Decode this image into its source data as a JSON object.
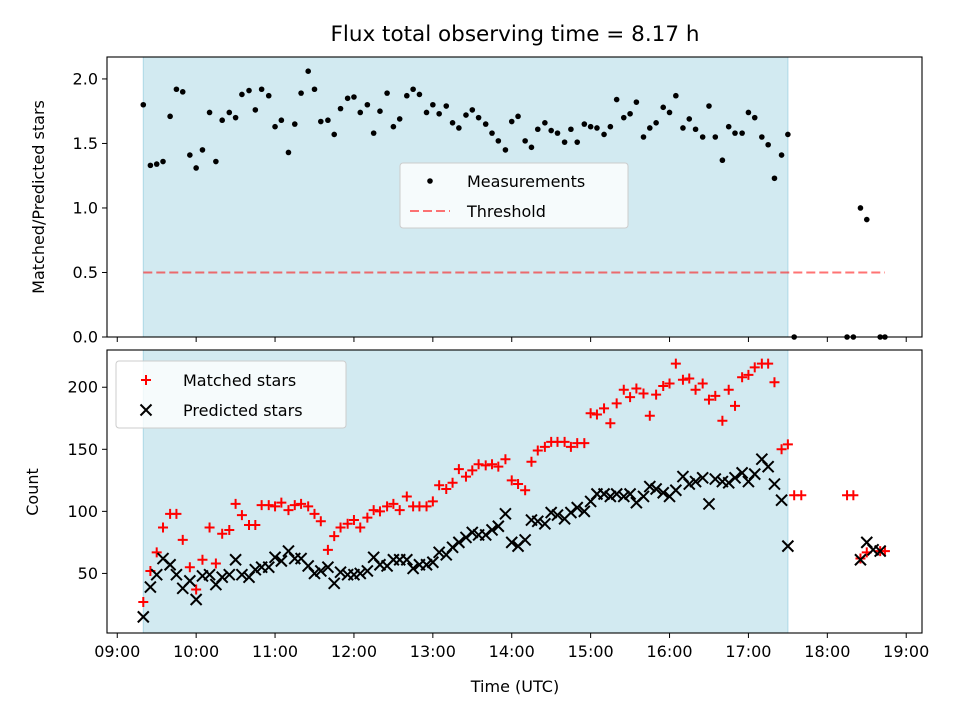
{
  "chart_data": {
    "title": "Flux total observing time = 8.17 h",
    "xlabel": "Time (UTC)",
    "x_ticks": [
      "09:00",
      "10:00",
      "11:00",
      "12:00",
      "13:00",
      "14:00",
      "15:00",
      "16:00",
      "17:00",
      "18:00",
      "19:00"
    ],
    "x_tick_hours": [
      9,
      10,
      11,
      12,
      13,
      14,
      15,
      16,
      17,
      18,
      19
    ],
    "xlim": [
      8.87,
      19.2
    ],
    "observing_window_hours": [
      9.33,
      17.5
    ],
    "colors": {
      "span": "#add8e6",
      "measure": "#000000",
      "threshold": "#ff0000",
      "matched": "#ff0000",
      "predicted": "#000000"
    },
    "top": {
      "type": "scatter",
      "ylabel": "Matched/Predicted stars",
      "ylim": [
        0,
        2.17
      ],
      "y_ticks": [
        "0.0",
        "0.5",
        "1.0",
        "1.5",
        "2.0"
      ],
      "y_tick_values": [
        0,
        0.5,
        1.0,
        1.5,
        2.0
      ],
      "threshold": {
        "value": 0.5,
        "x_range": [
          9.33,
          18.73
        ]
      },
      "legend": {
        "position": "center",
        "entries": [
          "Measurements",
          "Threshold"
        ]
      },
      "measurements": [
        [
          9.33,
          1.8
        ],
        [
          9.42,
          1.33
        ],
        [
          9.5,
          1.34
        ],
        [
          9.58,
          1.36
        ],
        [
          9.67,
          1.71
        ],
        [
          9.75,
          1.92
        ],
        [
          9.83,
          1.9
        ],
        [
          9.92,
          1.41
        ],
        [
          10.0,
          1.31
        ],
        [
          10.08,
          1.45
        ],
        [
          10.17,
          1.74
        ],
        [
          10.25,
          1.36
        ],
        [
          10.33,
          1.68
        ],
        [
          10.42,
          1.74
        ],
        [
          10.5,
          1.7
        ],
        [
          10.58,
          1.88
        ],
        [
          10.67,
          1.91
        ],
        [
          10.75,
          1.76
        ],
        [
          10.83,
          1.92
        ],
        [
          10.92,
          1.87
        ],
        [
          11.0,
          1.63
        ],
        [
          11.08,
          1.68
        ],
        [
          11.17,
          1.43
        ],
        [
          11.25,
          1.65
        ],
        [
          11.33,
          1.89
        ],
        [
          11.42,
          2.06
        ],
        [
          11.5,
          1.92
        ],
        [
          11.58,
          1.67
        ],
        [
          11.67,
          1.68
        ],
        [
          11.75,
          1.57
        ],
        [
          11.83,
          1.77
        ],
        [
          11.92,
          1.85
        ],
        [
          12.0,
          1.86
        ],
        [
          12.08,
          1.74
        ],
        [
          12.17,
          1.8
        ],
        [
          12.25,
          1.58
        ],
        [
          12.33,
          1.75
        ],
        [
          12.42,
          1.89
        ],
        [
          12.5,
          1.63
        ],
        [
          12.58,
          1.69
        ],
        [
          12.67,
          1.87
        ],
        [
          12.75,
          1.92
        ],
        [
          12.83,
          1.88
        ],
        [
          12.92,
          1.74
        ],
        [
          13.0,
          1.8
        ],
        [
          13.08,
          1.73
        ],
        [
          13.17,
          1.79
        ],
        [
          13.25,
          1.66
        ],
        [
          13.33,
          1.62
        ],
        [
          13.42,
          1.72
        ],
        [
          13.5,
          1.76
        ],
        [
          13.58,
          1.7
        ],
        [
          13.67,
          1.65
        ],
        [
          13.75,
          1.58
        ],
        [
          13.83,
          1.52
        ],
        [
          13.92,
          1.45
        ],
        [
          14.0,
          1.67
        ],
        [
          14.08,
          1.71
        ],
        [
          14.17,
          1.52
        ],
        [
          14.25,
          1.47
        ],
        [
          14.33,
          1.61
        ],
        [
          14.42,
          1.66
        ],
        [
          14.5,
          1.6
        ],
        [
          14.58,
          1.58
        ],
        [
          14.67,
          1.51
        ],
        [
          14.75,
          1.61
        ],
        [
          14.83,
          1.51
        ],
        [
          14.92,
          1.65
        ],
        [
          15.0,
          1.63
        ],
        [
          15.08,
          1.62
        ],
        [
          15.17,
          1.57
        ],
        [
          15.25,
          1.63
        ],
        [
          15.33,
          1.84
        ],
        [
          15.42,
          1.7
        ],
        [
          15.5,
          1.73
        ],
        [
          15.58,
          1.82
        ],
        [
          15.67,
          1.55
        ],
        [
          15.75,
          1.62
        ],
        [
          15.83,
          1.66
        ],
        [
          15.92,
          1.78
        ],
        [
          16.0,
          1.74
        ],
        [
          16.08,
          1.87
        ],
        [
          16.17,
          1.62
        ],
        [
          16.25,
          1.69
        ],
        [
          16.33,
          1.61
        ],
        [
          16.42,
          1.55
        ],
        [
          16.5,
          1.79
        ],
        [
          16.58,
          1.55
        ],
        [
          16.67,
          1.37
        ],
        [
          16.75,
          1.63
        ],
        [
          16.83,
          1.58
        ],
        [
          16.92,
          1.58
        ],
        [
          17.0,
          1.74
        ],
        [
          17.08,
          1.7
        ],
        [
          17.17,
          1.55
        ],
        [
          17.25,
          1.49
        ],
        [
          17.33,
          1.23
        ],
        [
          17.42,
          1.41
        ],
        [
          17.5,
          1.57
        ],
        [
          17.58,
          0.0
        ],
        [
          18.25,
          0.0
        ],
        [
          18.33,
          0.0
        ],
        [
          18.42,
          1.0
        ],
        [
          18.5,
          0.91
        ],
        [
          18.67,
          0.0
        ],
        [
          18.73,
          0.0
        ]
      ]
    },
    "bottom": {
      "type": "scatter",
      "ylabel": "Count",
      "ylim": [
        2,
        230
      ],
      "y_ticks": [
        "50",
        "100",
        "150",
        "200"
      ],
      "y_tick_values": [
        50,
        100,
        150,
        200
      ],
      "legend": {
        "position": "top-left",
        "entries": [
          "Matched stars",
          "Predicted stars"
        ]
      },
      "matched": [
        [
          9.33,
          27
        ],
        [
          9.42,
          52
        ],
        [
          9.5,
          67
        ],
        [
          9.58,
          87
        ],
        [
          9.67,
          98
        ],
        [
          9.75,
          98
        ],
        [
          9.83,
          77
        ],
        [
          9.92,
          55
        ],
        [
          10.0,
          37
        ],
        [
          10.08,
          61
        ],
        [
          10.17,
          87
        ],
        [
          10.25,
          58
        ],
        [
          10.33,
          82
        ],
        [
          10.42,
          85
        ],
        [
          10.5,
          106
        ],
        [
          10.58,
          97
        ],
        [
          10.67,
          89
        ],
        [
          10.75,
          89
        ],
        [
          10.83,
          105
        ],
        [
          10.92,
          105
        ],
        [
          11.0,
          104
        ],
        [
          11.08,
          107
        ],
        [
          11.17,
          101
        ],
        [
          11.25,
          105
        ],
        [
          11.33,
          106
        ],
        [
          11.42,
          104
        ],
        [
          11.5,
          98
        ],
        [
          11.58,
          92
        ],
        [
          11.67,
          69
        ],
        [
          11.75,
          80
        ],
        [
          11.83,
          87
        ],
        [
          11.92,
          90
        ],
        [
          12.0,
          93
        ],
        [
          12.08,
          87
        ],
        [
          12.17,
          95
        ],
        [
          12.25,
          101
        ],
        [
          12.33,
          100
        ],
        [
          12.42,
          104
        ],
        [
          12.5,
          106
        ],
        [
          12.58,
          101
        ],
        [
          12.67,
          112
        ],
        [
          12.75,
          104
        ],
        [
          12.83,
          104
        ],
        [
          12.92,
          104
        ],
        [
          13.0,
          108
        ],
        [
          13.08,
          121
        ],
        [
          13.17,
          118
        ],
        [
          13.25,
          123
        ],
        [
          13.33,
          134
        ],
        [
          13.42,
          128
        ],
        [
          13.5,
          133
        ],
        [
          13.58,
          138
        ],
        [
          13.67,
          137
        ],
        [
          13.75,
          138
        ],
        [
          13.83,
          136
        ],
        [
          13.92,
          142
        ],
        [
          14.0,
          125
        ],
        [
          14.08,
          122
        ],
        [
          14.17,
          117
        ],
        [
          14.25,
          140
        ],
        [
          14.33,
          149
        ],
        [
          14.42,
          152
        ],
        [
          14.5,
          156
        ],
        [
          14.58,
          156
        ],
        [
          14.67,
          156
        ],
        [
          14.75,
          152
        ],
        [
          14.83,
          155
        ],
        [
          14.92,
          155
        ],
        [
          15.0,
          179
        ],
        [
          15.08,
          178
        ],
        [
          15.17,
          183
        ],
        [
          15.25,
          171
        ],
        [
          15.33,
          187
        ],
        [
          15.42,
          198
        ],
        [
          15.5,
          192
        ],
        [
          15.58,
          199
        ],
        [
          15.67,
          195
        ],
        [
          15.75,
          177
        ],
        [
          15.83,
          194
        ],
        [
          15.92,
          201
        ],
        [
          16.0,
          203
        ],
        [
          16.08,
          219
        ],
        [
          16.17,
          206
        ],
        [
          16.25,
          207
        ],
        [
          16.33,
          198
        ],
        [
          16.42,
          203
        ],
        [
          16.5,
          190
        ],
        [
          16.58,
          193
        ],
        [
          16.67,
          173
        ],
        [
          16.75,
          198
        ],
        [
          16.83,
          185
        ],
        [
          16.92,
          208
        ],
        [
          17.0,
          210
        ],
        [
          17.08,
          216
        ],
        [
          17.17,
          219
        ],
        [
          17.25,
          219
        ],
        [
          17.33,
          204
        ],
        [
          17.42,
          150
        ],
        [
          17.5,
          154
        ],
        [
          17.58,
          113
        ],
        [
          17.67,
          113
        ],
        [
          18.25,
          113
        ],
        [
          18.33,
          113
        ],
        [
          18.42,
          62
        ],
        [
          18.5,
          67
        ],
        [
          18.67,
          68
        ],
        [
          18.73,
          68
        ]
      ],
      "predicted": [
        [
          9.33,
          15
        ],
        [
          9.42,
          39
        ],
        [
          9.5,
          49
        ],
        [
          9.58,
          62
        ],
        [
          9.67,
          57
        ],
        [
          9.75,
          49
        ],
        [
          9.83,
          38
        ],
        [
          9.92,
          44
        ],
        [
          10.0,
          29
        ],
        [
          10.08,
          48
        ],
        [
          10.17,
          49
        ],
        [
          10.25,
          41
        ],
        [
          10.33,
          47
        ],
        [
          10.42,
          49
        ],
        [
          10.5,
          61
        ],
        [
          10.58,
          49
        ],
        [
          10.67,
          47
        ],
        [
          10.75,
          53
        ],
        [
          10.83,
          55
        ],
        [
          10.92,
          55
        ],
        [
          11.0,
          63
        ],
        [
          11.08,
          60
        ],
        [
          11.17,
          68
        ],
        [
          11.25,
          62
        ],
        [
          11.33,
          62
        ],
        [
          11.42,
          56
        ],
        [
          11.5,
          50
        ],
        [
          11.58,
          52
        ],
        [
          11.67,
          55
        ],
        [
          11.75,
          42
        ],
        [
          11.83,
          51
        ],
        [
          11.92,
          49
        ],
        [
          12.0,
          49
        ],
        [
          12.08,
          50
        ],
        [
          12.17,
          52
        ],
        [
          12.25,
          63
        ],
        [
          12.33,
          57
        ],
        [
          12.42,
          56
        ],
        [
          12.5,
          61
        ],
        [
          12.58,
          61
        ],
        [
          12.67,
          61
        ],
        [
          12.75,
          54
        ],
        [
          12.83,
          57
        ],
        [
          12.92,
          57
        ],
        [
          13.0,
          59
        ],
        [
          13.08,
          67
        ],
        [
          13.17,
          65
        ],
        [
          13.25,
          71
        ],
        [
          13.33,
          75
        ],
        [
          13.42,
          79
        ],
        [
          13.5,
          83
        ],
        [
          13.58,
          81
        ],
        [
          13.67,
          81
        ],
        [
          13.75,
          85
        ],
        [
          13.83,
          88
        ],
        [
          13.92,
          98
        ],
        [
          14.0,
          75
        ],
        [
          14.08,
          72
        ],
        [
          14.17,
          77
        ],
        [
          14.25,
          93
        ],
        [
          14.33,
          92
        ],
        [
          14.42,
          90
        ],
        [
          14.5,
          99
        ],
        [
          14.58,
          97
        ],
        [
          14.67,
          94
        ],
        [
          14.75,
          99
        ],
        [
          14.83,
          103
        ],
        [
          14.92,
          100
        ],
        [
          15.0,
          108
        ],
        [
          15.08,
          114
        ],
        [
          15.17,
          114
        ],
        [
          15.25,
          112
        ],
        [
          15.33,
          114
        ],
        [
          15.42,
          112
        ],
        [
          15.5,
          114
        ],
        [
          15.58,
          107
        ],
        [
          15.67,
          112
        ],
        [
          15.75,
          120
        ],
        [
          15.83,
          118
        ],
        [
          15.92,
          115
        ],
        [
          16.0,
          112
        ],
        [
          16.08,
          117
        ],
        [
          16.17,
          128
        ],
        [
          16.25,
          122
        ],
        [
          16.33,
          124
        ],
        [
          16.42,
          127
        ],
        [
          16.5,
          106
        ],
        [
          16.58,
          126
        ],
        [
          16.67,
          124
        ],
        [
          16.75,
          123
        ],
        [
          16.83,
          127
        ],
        [
          16.92,
          131
        ],
        [
          17.0,
          124
        ],
        [
          17.08,
          130
        ],
        [
          17.17,
          142
        ],
        [
          17.25,
          136
        ],
        [
          17.33,
          122
        ],
        [
          17.42,
          109
        ],
        [
          17.5,
          72
        ],
        [
          18.42,
          61
        ],
        [
          18.5,
          75
        ],
        [
          18.58,
          69
        ],
        [
          18.67,
          68
        ]
      ]
    }
  }
}
